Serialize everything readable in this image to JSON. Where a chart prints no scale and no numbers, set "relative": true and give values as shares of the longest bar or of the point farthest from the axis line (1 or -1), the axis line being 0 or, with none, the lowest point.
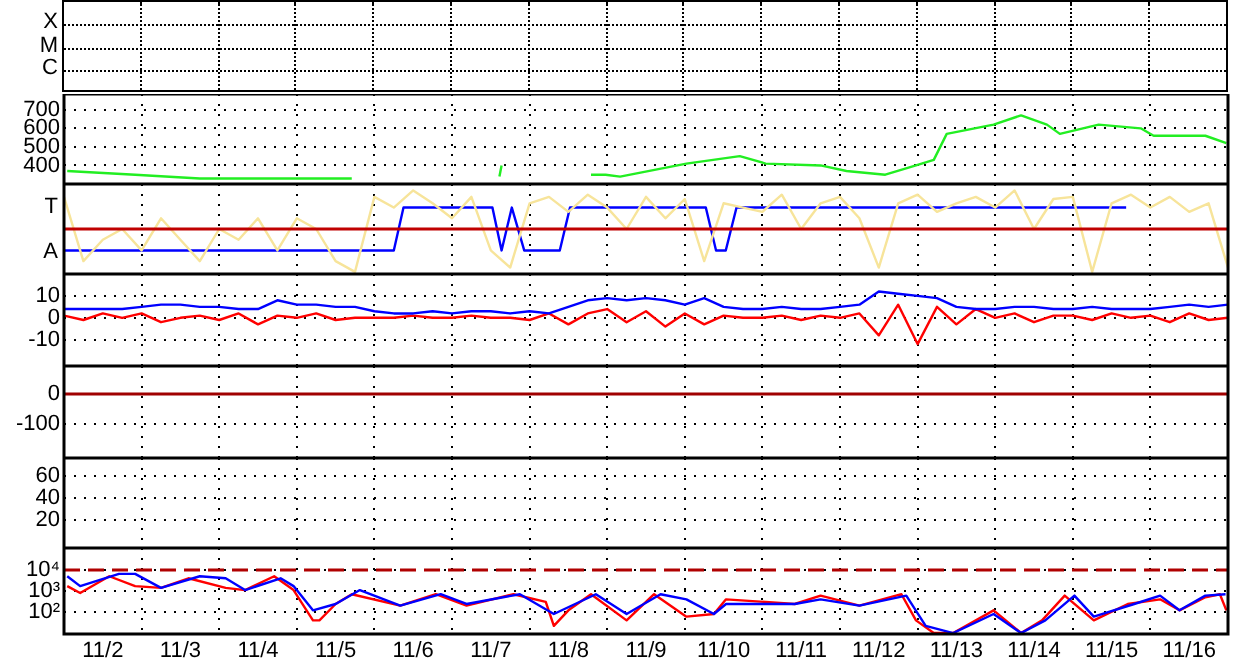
{
  "chart_data": [
    {
      "type": "other",
      "annotations": [
        "X",
        "M",
        "C"
      ]
    },
    {
      "type": "line",
      "xlim": [
        "--11-02T00:00",
        "--11-17T00:00"
      ],
      "xticks": [
        {
          "value": "--11-03",
          "label": null
        },
        {
          "value": "--11-04",
          "label": null
        },
        {
          "value": "--11-05",
          "label": null
        },
        {
          "value": "--11-06",
          "label": null
        },
        {
          "value": "--11-07",
          "label": null
        },
        {
          "value": "--11-08",
          "label": null
        },
        {
          "value": "--11-09",
          "label": null
        },
        {
          "value": "--11-10",
          "label": null
        },
        {
          "value": "--11-11",
          "label": null
        },
        {
          "value": "--11-12",
          "label": null
        },
        {
          "value": "--11-13",
          "label": null
        },
        {
          "value": "--11-14",
          "label": null
        },
        {
          "value": "--11-15",
          "label": null
        },
        {
          "value": "--11-16",
          "label": null
        }
      ],
      "ylim": [
        300,
        785
      ],
      "yticks": [
        400,
        500,
        600,
        700
      ],
      "grid": true,
      "tick_labels": "y",
      "series": [
        {
          "color": "#22ee22",
          "x": [
            "--11-02T01:00",
            "--11-02T22:00",
            "--11-03T18:00",
            "--11-05T12:00",
            "--11-05T17:00",
            "--11-05T18:00",
            "--11-07T14:40",
            "--11-07T15:20",
            "--11-07T16:00",
            "--11-08T19:00",
            "--11-08T23:30",
            "--11-09T04:00",
            "--11-10T00:30",
            "--11-10T17:00",
            "--11-11T01:00",
            "--11-11T18:00",
            "--11-12T02:00",
            "--11-12T14:00",
            "--11-12T23:30",
            "--11-13T05:00",
            "--11-13T09:00",
            "--11-13T23:30",
            "--11-14T08:00",
            "--11-14T16:00",
            "--11-14T20:00",
            "--11-15T08:00",
            "--11-15T21:00",
            "--11-16T01:00",
            "--11-16T17:00",
            "--11-16T23:30"
          ],
          "values": [
            370,
            350,
            330,
            330,
            330,
            null,
            340,
            400,
            null,
            350,
            350,
            340,
            410,
            450,
            410,
            400,
            370,
            350,
            400,
            430,
            570,
            620,
            670,
            620,
            570,
            620,
            600,
            560,
            560,
            520
          ]
        }
      ]
    },
    {
      "type": "line",
      "xlim": [
        "--11-02T00:00",
        "--11-17T00:00"
      ],
      "xticks": [
        {
          "value": "--11-03",
          "label": null
        },
        {
          "value": "--11-04",
          "label": null
        },
        {
          "value": "--11-05",
          "label": null
        },
        {
          "value": "--11-06",
          "label": null
        },
        {
          "value": "--11-07",
          "label": null
        },
        {
          "value": "--11-08",
          "label": null
        },
        {
          "value": "--11-09",
          "label": null
        },
        {
          "value": "--11-10",
          "label": null
        },
        {
          "value": "--11-11",
          "label": null
        },
        {
          "value": "--11-12",
          "label": null
        },
        {
          "value": "--11-13",
          "label": null
        },
        {
          "value": "--11-14",
          "label": null
        },
        {
          "value": "--11-15",
          "label": null
        },
        {
          "value": "--11-16",
          "label": null
        }
      ],
      "relative": true,
      "annotations": [
        "T",
        "A"
      ],
      "grid": "x",
      "tick_labels": "y",
      "ref_lines": [
        {
          "axis": "y",
          "value": 0,
          "color": "#c00000"
        }
      ],
      "series": [
        {
          "color": "#f7e49a",
          "x": [
            "--11-02T00:00",
            "--11-02T06:00",
            "--11-02T12:00",
            "--11-02T18:00",
            "--11-03T00:00",
            "--11-03T06:00",
            "--11-03T12:00",
            "--11-03T18:00",
            "--11-04T00:00",
            "--11-04T06:00",
            "--11-04T12:00",
            "--11-04T18:00",
            "--11-05T00:00",
            "--11-05T06:00",
            "--11-05T12:00",
            "--11-05T18:00",
            "--11-06T00:00",
            "--11-06T06:00",
            "--11-06T12:00",
            "--11-06T18:00",
            "--11-07T00:00",
            "--11-07T06:00",
            "--11-07T12:00",
            "--11-07T18:00",
            "--11-08T00:00",
            "--11-08T06:00",
            "--11-08T12:00",
            "--11-08T18:00",
            "--11-09T00:00",
            "--11-09T06:00",
            "--11-09T12:00",
            "--11-09T18:00",
            "--11-10T00:00",
            "--11-10T06:00",
            "--11-10T12:00",
            "--11-10T18:00",
            "--11-11T00:00",
            "--11-11T06:00",
            "--11-11T12:00",
            "--11-11T18:00",
            "--11-12T00:00",
            "--11-12T06:00",
            "--11-12T12:00",
            "--11-12T18:00",
            "--11-13T00:00",
            "--11-13T06:00",
            "--11-13T12:00",
            "--11-13T18:00",
            "--11-14T00:00",
            "--11-14T06:00",
            "--11-14T12:00",
            "--11-14T18:00",
            "--11-15T00:00",
            "--11-15T06:00",
            "--11-15T12:00",
            "--11-15T18:00",
            "--11-16T00:00",
            "--11-16T06:00",
            "--11-16T12:00",
            "--11-16T18:00",
            "--11-17T00:00"
          ],
          "values": [
            0.75,
            -0.75,
            -0.25,
            0,
            -0.5,
            0.25,
            -0.25,
            -0.75,
            0,
            -0.25,
            0.25,
            -0.5,
            0.25,
            0,
            -0.75,
            -1,
            0.75,
            0.5,
            0.9,
            0.6,
            0.25,
            0.75,
            -0.5,
            -0.9,
            0.6,
            0.75,
            0.4,
            0.8,
            0.5,
            0,
            0.75,
            0.25,
            0.7,
            -0.75,
            0.6,
            0.5,
            0.4,
            0.8,
            0,
            0.6,
            0.75,
            0.25,
            -0.9,
            0.6,
            0.8,
            0.4,
            0.6,
            0.75,
            0.5,
            0.9,
            0,
            0.7,
            0.75,
            -1,
            0.6,
            0.8,
            0.5,
            0.75,
            0.4,
            0.6,
            -0.9
          ]
        },
        {
          "color": "#0000ff",
          "x": [
            "--11-02T00:00",
            "--11-06T06:00",
            "--11-06T09:00",
            "--11-07T12:30",
            "--11-07T15:20",
            "--11-07T18:30",
            "--11-07T22:20",
            "--11-08T09:20",
            "--11-08T12:30",
            "--11-10T06:30",
            "--11-10T09:40",
            "--11-10T12:40",
            "--11-10T16:00",
            "--11-15T16:30"
          ],
          "values": [
            -0.5,
            -0.5,
            0.5,
            0.5,
            -0.5,
            0.5,
            -0.5,
            -0.5,
            0.5,
            0.5,
            -0.5,
            -0.5,
            0.5,
            0.5
          ]
        }
      ]
    },
    {
      "type": "line",
      "xlim": [
        "--11-02T00:00",
        "--11-17T00:00"
      ],
      "xticks": [
        {
          "value": "--11-03",
          "label": null
        },
        {
          "value": "--11-04",
          "label": null
        },
        {
          "value": "--11-05",
          "label": null
        },
        {
          "value": "--11-06",
          "label": null
        },
        {
          "value": "--11-07",
          "label": null
        },
        {
          "value": "--11-08",
          "label": null
        },
        {
          "value": "--11-09",
          "label": null
        },
        {
          "value": "--11-10",
          "label": null
        },
        {
          "value": "--11-11",
          "label": null
        },
        {
          "value": "--11-12",
          "label": null
        },
        {
          "value": "--11-13",
          "label": null
        },
        {
          "value": "--11-14",
          "label": null
        },
        {
          "value": "--11-15",
          "label": null
        },
        {
          "value": "--11-16",
          "label": null
        }
      ],
      "ylim": [
        -22,
        20
      ],
      "yticks": [
        10,
        0,
        -10
      ],
      "grid": true,
      "tick_labels": "y",
      "x": [
        "--11-02T00:00",
        "--11-02T06:00",
        "--11-02T12:00",
        "--11-02T18:00",
        "--11-03T00:00",
        "--11-03T06:00",
        "--11-03T12:00",
        "--11-03T18:00",
        "--11-04T00:00",
        "--11-04T06:00",
        "--11-04T12:00",
        "--11-04T18:00",
        "--11-05T00:00",
        "--11-05T06:00",
        "--11-05T12:00",
        "--11-05T18:00",
        "--11-06T00:00",
        "--11-06T06:00",
        "--11-06T12:00",
        "--11-06T18:00",
        "--11-07T00:00",
        "--11-07T06:00",
        "--11-07T12:00",
        "--11-07T18:00",
        "--11-08T00:00",
        "--11-08T06:00",
        "--11-08T12:00",
        "--11-08T18:00",
        "--11-09T00:00",
        "--11-09T06:00",
        "--11-09T12:00",
        "--11-09T18:00",
        "--11-10T00:00",
        "--11-10T06:00",
        "--11-10T12:00",
        "--11-10T18:00",
        "--11-11T00:00",
        "--11-11T06:00",
        "--11-11T12:00",
        "--11-11T18:00",
        "--11-12T00:00",
        "--11-12T06:00",
        "--11-12T12:00",
        "--11-12T18:00",
        "--11-13T00:00",
        "--11-13T06:00",
        "--11-13T12:00",
        "--11-13T18:00",
        "--11-14T00:00",
        "--11-14T06:00",
        "--11-14T12:00",
        "--11-14T18:00",
        "--11-15T00:00",
        "--11-15T06:00",
        "--11-15T12:00",
        "--11-15T18:00",
        "--11-16T00:00",
        "--11-16T06:00",
        "--11-16T12:00",
        "--11-16T18:00",
        "--11-17T00:00"
      ],
      "series": [
        {
          "color": "#0000ff",
          "values": [
            4,
            4,
            4,
            4,
            5,
            6,
            6,
            5,
            5,
            4,
            4,
            8,
            6,
            6,
            5,
            5,
            3,
            2,
            2,
            3,
            2,
            3,
            3,
            2,
            3,
            2,
            5,
            8,
            9,
            8,
            9,
            8,
            6,
            9,
            5,
            4,
            4,
            5,
            4,
            4,
            5,
            6,
            12,
            11,
            10,
            9,
            5,
            4,
            4,
            5,
            5,
            4,
            4,
            5,
            4,
            4,
            4,
            5,
            6,
            5,
            6
          ]
        },
        {
          "color": "#ff0000",
          "values": [
            1,
            -1,
            2,
            0,
            2,
            -2,
            0,
            1,
            -1,
            2,
            -3,
            1,
            0,
            2,
            -1,
            0,
            0,
            0,
            1,
            0,
            0,
            1,
            0,
            0,
            -1,
            2,
            -3,
            2,
            4,
            -2,
            3,
            -4,
            2,
            -3,
            1,
            0,
            0,
            1,
            -1,
            1,
            0,
            2,
            -8,
            6,
            -12,
            5,
            -3,
            4,
            0,
            2,
            -2,
            1,
            1,
            -1,
            2,
            0,
            1,
            -2,
            2,
            -1,
            0
          ]
        }
      ]
    },
    {
      "type": "line",
      "xlim": [
        "--11-02T00:00",
        "--11-17T00:00"
      ],
      "xticks": [
        {
          "value": "--11-03",
          "label": null
        },
        {
          "value": "--11-04",
          "label": null
        },
        {
          "value": "--11-05",
          "label": null
        },
        {
          "value": "--11-06",
          "label": null
        },
        {
          "value": "--11-07",
          "label": null
        },
        {
          "value": "--11-08",
          "label": null
        },
        {
          "value": "--11-09",
          "label": null
        },
        {
          "value": "--11-10",
          "label": null
        },
        {
          "value": "--11-11",
          "label": null
        },
        {
          "value": "--11-12",
          "label": null
        },
        {
          "value": "--11-13",
          "label": null
        },
        {
          "value": "--11-14",
          "label": null
        },
        {
          "value": "--11-15",
          "label": null
        },
        {
          "value": "--11-16",
          "label": null
        }
      ],
      "ylim": [
        -213,
        93
      ],
      "yticks": [
        0,
        -100
      ],
      "grid": true,
      "tick_labels": "y",
      "ref_lines": [
        {
          "axis": "y",
          "value": 0,
          "color": "#a00000"
        }
      ]
    },
    {
      "type": "line",
      "xlim": [
        "--11-02T00:00",
        "--11-17T00:00"
      ],
      "xticks": [
        {
          "value": "--11-03",
          "label": null
        },
        {
          "value": "--11-04",
          "label": null
        },
        {
          "value": "--11-05",
          "label": null
        },
        {
          "value": "--11-06",
          "label": null
        },
        {
          "value": "--11-07",
          "label": null
        },
        {
          "value": "--11-08",
          "label": null
        },
        {
          "value": "--11-09",
          "label": null
        },
        {
          "value": "--11-10",
          "label": null
        },
        {
          "value": "--11-11",
          "label": null
        },
        {
          "value": "--11-12",
          "label": null
        },
        {
          "value": "--11-13",
          "label": null
        },
        {
          "value": "--11-14",
          "label": null
        },
        {
          "value": "--11-15",
          "label": null
        },
        {
          "value": "--11-16",
          "label": null
        }
      ],
      "ylim": [
        -5,
        76
      ],
      "yticks": [
        60,
        40,
        20
      ],
      "grid": true,
      "tick_labels": "y"
    },
    {
      "type": "line",
      "xlim": [
        "--11-02T00:00",
        "--11-17T00:00"
      ],
      "xticks": [
        {
          "value": "--11-02T12:00",
          "label": "11/2"
        },
        {
          "value": "--11-03",
          "label": null
        },
        {
          "value": "--11-03T12:00",
          "label": "11/3"
        },
        {
          "value": "--11-04",
          "label": null
        },
        {
          "value": "--11-04T12:00",
          "label": "11/4"
        },
        {
          "value": "--11-05",
          "label": null
        },
        {
          "value": "--11-05T12:00",
          "label": "11/5"
        },
        {
          "value": "--11-06",
          "label": null
        },
        {
          "value": "--11-06T12:00",
          "label": "11/6"
        },
        {
          "value": "--11-07",
          "label": null
        },
        {
          "value": "--11-07T12:00",
          "label": "11/7"
        },
        {
          "value": "--11-08",
          "label": null
        },
        {
          "value": "--11-08T12:00",
          "label": "11/8"
        },
        {
          "value": "--11-09",
          "label": null
        },
        {
          "value": "--11-09T12:00",
          "label": "11/9"
        },
        {
          "value": "--11-10",
          "label": null
        },
        {
          "value": "--11-10T12:00",
          "label": "11/10"
        },
        {
          "value": "--11-11",
          "label": null
        },
        {
          "value": "--11-11T12:00",
          "label": "11/11"
        },
        {
          "value": "--11-12",
          "label": null
        },
        {
          "value": "--11-12T12:00",
          "label": "11/12"
        },
        {
          "value": "--11-13",
          "label": null
        },
        {
          "value": "--11-13T12:00",
          "label": "11/13"
        },
        {
          "value": "--11-14",
          "label": null
        },
        {
          "value": "--11-14T12:00",
          "label": "11/14"
        },
        {
          "value": "--11-15",
          "label": null
        },
        {
          "value": "--11-15T12:00",
          "label": "11/15"
        },
        {
          "value": "--11-16",
          "label": null
        },
        {
          "value": "--11-16T12:00",
          "label": "11/16"
        }
      ],
      "log": true,
      "ylim": [
        9,
        110000
      ],
      "yticks": [
        {
          "value": 10000,
          "label": "10⁴"
        },
        {
          "value": 1000,
          "label": "10³"
        },
        {
          "value": 100,
          "label": "10²"
        }
      ],
      "grid": true,
      "ref_lines": [
        {
          "axis": "y",
          "value": 10000,
          "color": "#b00000",
          "line_style": "dashed"
        }
      ],
      "series": [
        {
          "color": "#0000ff",
          "x": [
            "--11-02T01:00",
            "--11-02T05:00",
            "--11-02T17:00",
            "--11-02T22:00",
            "--11-03T06:00",
            "--11-03T18:00",
            "--11-04T02:00",
            "--11-04T08:00",
            "--11-04T19:00",
            "--11-04T23:00",
            "--11-05T05:00",
            "--11-05T12:00",
            "--11-05T19:30",
            "--11-06T08:00",
            "--11-06T20:30",
            "--11-07T04:30",
            "--11-07T21:00",
            "--11-08T07:30",
            "--11-08T20:30",
            "--11-09T06:00",
            "--11-09T16:30",
            "--11-10T00:30",
            "--11-10T09:00",
            "--11-10T12:45",
            "--11-11T10:00",
            "--11-11T18:00",
            "--11-12T06:00",
            "--11-12T20:30",
            "--11-13T02:30",
            "--11-13T11:00",
            "--11-13T23:30",
            "--11-14T08:00",
            "--11-14T15:30",
            "--11-15T00:30",
            "--11-15T06:30",
            "--11-15T19:00",
            "--11-16T03:00",
            "--11-16T09:00",
            "--11-16T17:00",
            "--11-16T23:15"
          ],
          "values": [
            5000,
            1700,
            6500,
            6500,
            1400,
            5000,
            4000,
            1100,
            4000,
            1700,
            120,
            240,
            1100,
            200,
            700,
            240,
            700,
            80,
            700,
            80,
            700,
            400,
            80,
            240,
            240,
            400,
            200,
            600,
            22,
            10,
            80,
            10,
            40,
            600,
            60,
            240,
            600,
            120,
            600,
            700
          ]
        },
        {
          "color": "#ff0000",
          "x": [
            "--11-02T01:00",
            "--11-02T05:00",
            "--11-02T14:00",
            "--11-02T22:00",
            "--11-03T06:00",
            "--11-03T14:30",
            "--11-04T02:00",
            "--11-04T08:00",
            "--11-04T17:00",
            "--11-04T23:00",
            "--11-05T05:00",
            "--11-05T07:00",
            "--11-05T12:00",
            "--11-05T17:00",
            "--11-06T08:00",
            "--11-06T19:00",
            "--11-07T04:30",
            "--11-07T19:00",
            "--11-08T05:00",
            "--11-08T07:30",
            "--11-08T12:00",
            "--11-08T19:00",
            "--11-09T06:00",
            "--11-09T14:30",
            "--11-10T00:30",
            "--11-10T09:00",
            "--11-10T12:45",
            "--11-11T10:00",
            "--11-11T18:00",
            "--11-12T06:00",
            "--11-12T19:00",
            "--11-12T23:30",
            "--11-13T05:00",
            "--11-13T11:00",
            "--11-13T23:30",
            "--11-14T08:00",
            "--11-14T14:30",
            "--11-14T21:30",
            "--11-15T06:30",
            "--11-15T17:00",
            "--11-16T03:00",
            "--11-16T09:00",
            "--11-16T17:00",
            "--11-16T21:30",
            "--11-16T23:30"
          ],
          "values": [
            1700,
            800,
            5000,
            1700,
            1400,
            4000,
            1400,
            1100,
            5000,
            1100,
            40,
            40,
            240,
            700,
            200,
            700,
            200,
            700,
            300,
            22,
            120,
            700,
            40,
            700,
            60,
            80,
            400,
            240,
            600,
            200,
            700,
            40,
            10,
            10,
            120,
            10,
            40,
            600,
            40,
            240,
            400,
            120,
            500,
            700,
            120
          ]
        }
      ]
    }
  ]
}
